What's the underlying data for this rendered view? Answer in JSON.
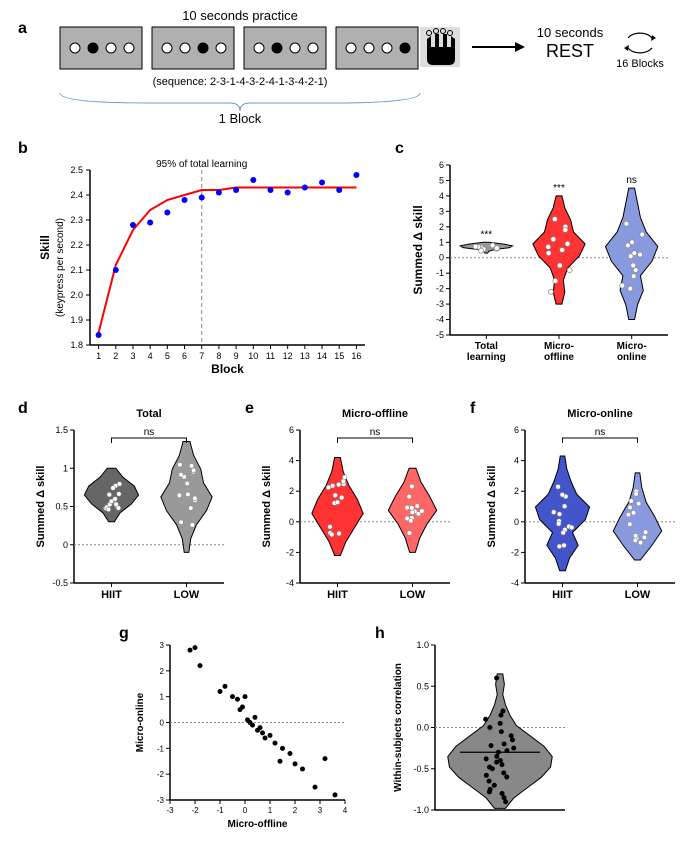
{
  "panel_a": {
    "title_text": "10 seconds practice",
    "sequence_text": "(sequence: 2-3-1-4-3-2-4-1-3-4-2-1)",
    "block_text": "1 Block",
    "rest_text1": "10 seconds",
    "rest_text2": "REST",
    "blocks_text": "16 Blocks",
    "key_box": {
      "fill": "#b0b0b0",
      "stroke": "#000000",
      "dot_radius": 5,
      "dot_empty_fill": "#ffffff",
      "dot_filled_fill": "#000000",
      "filled_indices": [
        1,
        2,
        1,
        3
      ]
    },
    "hand_bg": "#dddddd",
    "brace_color": "#6699cc"
  },
  "panel_b": {
    "xlabel": "Block",
    "ylabel": "Skill",
    "ylabel2": "(keypress per second)",
    "annotation": "95% of total learning",
    "xlim": [
      0.5,
      16.5
    ],
    "ylim": [
      1.8,
      2.5
    ],
    "xticks": [
      1,
      2,
      3,
      4,
      5,
      6,
      7,
      8,
      9,
      10,
      11,
      12,
      13,
      14,
      15,
      16
    ],
    "yticks": [
      1.8,
      1.9,
      2.0,
      2.1,
      2.2,
      2.3,
      2.4,
      2.5
    ],
    "vline_x": 7,
    "points": [
      [
        1,
        1.84
      ],
      [
        2,
        2.1
      ],
      [
        3,
        2.28
      ],
      [
        4,
        2.29
      ],
      [
        5,
        2.33
      ],
      [
        6,
        2.38
      ],
      [
        7,
        2.39
      ],
      [
        8,
        2.41
      ],
      [
        9,
        2.42
      ],
      [
        10,
        2.46
      ],
      [
        11,
        2.42
      ],
      [
        12,
        2.41
      ],
      [
        13,
        2.43
      ],
      [
        14,
        2.45
      ],
      [
        15,
        2.42
      ],
      [
        16,
        2.48
      ]
    ],
    "fit_curve": [
      [
        1,
        1.85
      ],
      [
        2,
        2.12
      ],
      [
        3,
        2.26
      ],
      [
        4,
        2.34
      ],
      [
        5,
        2.38
      ],
      [
        6,
        2.4
      ],
      [
        7,
        2.42
      ],
      [
        8,
        2.42
      ],
      [
        9,
        2.43
      ],
      [
        10,
        2.43
      ],
      [
        11,
        2.43
      ],
      [
        12,
        2.43
      ],
      [
        13,
        2.43
      ],
      [
        14,
        2.43
      ],
      [
        15,
        2.43
      ],
      [
        16,
        2.43
      ]
    ],
    "point_color": "#0000ff",
    "line_color": "#ff0000",
    "point_radius": 3,
    "line_width": 2
  },
  "panel_c": {
    "ylabel": "Summed Δ skill",
    "ylim": [
      -5,
      6
    ],
    "yticks": [
      -5,
      -4,
      -3,
      -2,
      -1,
      0,
      1,
      2,
      3,
      4,
      5,
      6
    ],
    "categories": [
      "Total\nlearning",
      "Micro-\noffline",
      "Micro-\nonline"
    ],
    "violins": [
      {
        "fill": "#999999",
        "stroke": "#000000",
        "widths": [
          0.05,
          0.08,
          0.3,
          0.8,
          0.9,
          0.6,
          0.1
        ],
        "y_range": [
          0.3,
          1.0
        ],
        "sig": "***"
      },
      {
        "fill": "#ff3333",
        "stroke": "#000000",
        "widths": [
          0.1,
          0.2,
          0.15,
          0.3,
          0.7,
          0.9,
          0.5,
          0.4,
          0.2,
          0.1
        ],
        "y_range": [
          -3,
          4
        ],
        "sig": "***"
      },
      {
        "fill": "#8899dd",
        "stroke": "#000000",
        "widths": [
          0.1,
          0.2,
          0.4,
          0.3,
          0.7,
          0.9,
          0.5,
          0.3,
          0.2,
          0.1
        ],
        "y_range": [
          -4,
          4.5
        ],
        "sig": "ns"
      }
    ],
    "point_color": "#ffffff",
    "point_stroke": "#888888",
    "points": [
      [
        0,
        0.5
      ],
      [
        0,
        0.6
      ],
      [
        0,
        0.65
      ],
      [
        0,
        0.55
      ],
      [
        0,
        0.7
      ],
      [
        0,
        0.45
      ],
      [
        0,
        0.8
      ],
      [
        0,
        0.58
      ],
      [
        0,
        0.62
      ],
      [
        0,
        0.72
      ],
      [
        1,
        0.5
      ],
      [
        1,
        1.2
      ],
      [
        1,
        -0.8
      ],
      [
        1,
        0.3
      ],
      [
        1,
        2.0
      ],
      [
        1,
        -1.5
      ],
      [
        1,
        0.7
      ],
      [
        1,
        1.8
      ],
      [
        1,
        -0.5
      ],
      [
        1,
        2.5
      ],
      [
        1,
        -2.2
      ],
      [
        1,
        0.9
      ],
      [
        2,
        0.2
      ],
      [
        2,
        -0.5
      ],
      [
        2,
        1.0
      ],
      [
        2,
        -1.2
      ],
      [
        2,
        0.8
      ],
      [
        2,
        -2.0
      ],
      [
        2,
        0.3
      ],
      [
        2,
        -0.8
      ],
      [
        2,
        1.5
      ],
      [
        2,
        -1.8
      ],
      [
        2,
        0.1
      ],
      [
        2,
        2.2
      ]
    ]
  },
  "panel_d": {
    "title": "Total",
    "ylabel": "Summed Δ skill",
    "ylim": [
      -0.5,
      1.5
    ],
    "yticks": [
      -0.5,
      0.0,
      0.5,
      1.0,
      1.5
    ],
    "categories": [
      "HIIT",
      "LOW"
    ],
    "sig": "ns",
    "violins": [
      {
        "fill": "#666666",
        "stroke": "#000000"
      },
      {
        "fill": "#999999",
        "stroke": "#000000"
      }
    ],
    "points_hiit": [
      [
        0,
        0.4
      ],
      [
        0,
        0.5
      ],
      [
        0,
        0.55
      ],
      [
        0,
        0.6
      ],
      [
        0,
        0.62
      ],
      [
        0,
        0.65
      ],
      [
        0,
        0.7
      ],
      [
        0,
        0.75
      ],
      [
        0,
        0.8
      ],
      [
        0,
        0.85
      ]
    ],
    "points_low": [
      [
        1,
        0.3
      ],
      [
        1,
        0.4
      ],
      [
        1,
        0.45
      ],
      [
        1,
        0.5
      ],
      [
        1,
        0.55
      ],
      [
        1,
        0.6
      ],
      [
        1,
        0.65
      ],
      [
        1,
        0.7
      ],
      [
        1,
        0.9
      ],
      [
        1,
        1.1
      ]
    ],
    "point_color": "#ffffff"
  },
  "panel_e": {
    "title": "Micro-offline",
    "ylabel": "Summed Δ skill",
    "ylim": [
      -4,
      6
    ],
    "yticks": [
      -4,
      -2,
      0,
      2,
      4,
      6
    ],
    "categories": [
      "HIIT",
      "LOW"
    ],
    "sig": "ns",
    "violins": [
      {
        "fill": "#ff3333",
        "stroke": "#000000"
      },
      {
        "fill": "#ff6666",
        "stroke": "#000000"
      }
    ],
    "point_color": "#ffffff"
  },
  "panel_f": {
    "title": "Micro-online",
    "ylabel": "Summed Δ skill",
    "ylim": [
      -4,
      6
    ],
    "yticks": [
      -4,
      -2,
      0,
      2,
      4,
      6
    ],
    "categories": [
      "HIIT",
      "LOW"
    ],
    "sig": "ns",
    "violins": [
      {
        "fill": "#4455cc",
        "stroke": "#000000"
      },
      {
        "fill": "#8899dd",
        "stroke": "#000000"
      }
    ],
    "point_color": "#ffffff"
  },
  "panel_g": {
    "xlabel": "Micro-offline",
    "ylabel": "Micro-online",
    "xlim": [
      -3,
      4
    ],
    "ylim": [
      -3,
      3
    ],
    "xticks": [
      -3,
      -2,
      -1,
      0,
      1,
      2,
      3,
      4
    ],
    "yticks": [
      -3,
      -2,
      -1,
      0,
      1,
      2,
      3
    ],
    "points": [
      [
        -2.2,
        2.8
      ],
      [
        -2.0,
        2.9
      ],
      [
        -1.8,
        2.2
      ],
      [
        -1.0,
        1.2
      ],
      [
        -0.8,
        1.4
      ],
      [
        -0.5,
        1.0
      ],
      [
        -0.3,
        0.9
      ],
      [
        -0.2,
        0.5
      ],
      [
        -0.1,
        0.6
      ],
      [
        0.0,
        1.0
      ],
      [
        0.1,
        0.1
      ],
      [
        0.2,
        0.0
      ],
      [
        0.3,
        -0.1
      ],
      [
        0.4,
        0.2
      ],
      [
        0.5,
        -0.3
      ],
      [
        0.6,
        -0.2
      ],
      [
        0.7,
        -0.4
      ],
      [
        0.8,
        -0.6
      ],
      [
        1.0,
        -0.5
      ],
      [
        1.2,
        -0.8
      ],
      [
        1.4,
        -1.5
      ],
      [
        1.5,
        -1.0
      ],
      [
        1.8,
        -1.2
      ],
      [
        2.0,
        -1.6
      ],
      [
        2.3,
        -1.8
      ],
      [
        2.8,
        -2.5
      ],
      [
        3.2,
        -1.4
      ],
      [
        3.6,
        -2.8
      ]
    ],
    "point_color": "#000000",
    "point_radius": 2.5
  },
  "panel_h": {
    "ylabel": "Within-subjects correlation",
    "ylim": [
      -1.0,
      1.0
    ],
    "yticks": [
      -1.0,
      -0.5,
      0.0,
      0.5,
      1.0
    ],
    "violin_fill": "#888888",
    "violin_stroke": "#000000",
    "points": [
      -0.9,
      -0.85,
      -0.8,
      -0.78,
      -0.75,
      -0.7,
      -0.65,
      -0.6,
      -0.58,
      -0.55,
      -0.5,
      -0.48,
      -0.45,
      -0.42,
      -0.4,
      -0.38,
      -0.35,
      -0.3,
      -0.28,
      -0.25,
      -0.22,
      -0.2,
      -0.15,
      -0.1,
      -0.05,
      0.0,
      0.05,
      0.1,
      0.15,
      0.2,
      0.6
    ],
    "point_color": "#000000",
    "point_radius": 2.5
  },
  "colors": {
    "axis": "#000000",
    "dash": "#888888"
  }
}
